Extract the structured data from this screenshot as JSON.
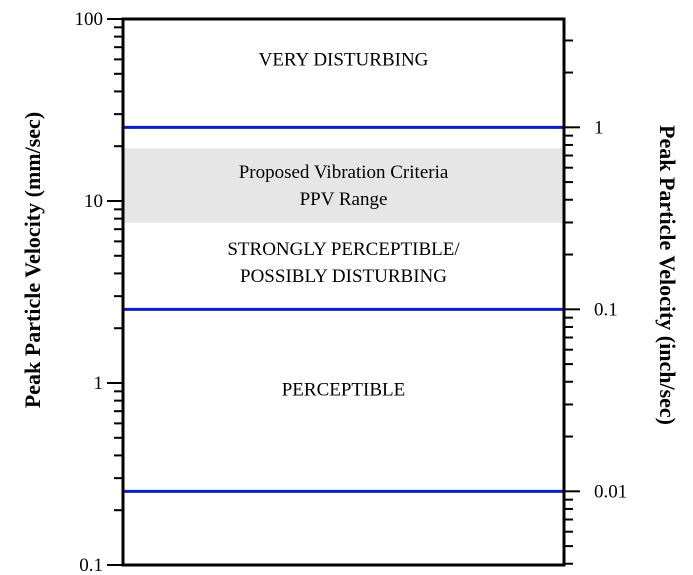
{
  "chart_data": {
    "type": "line",
    "title": "",
    "left_axis": {
      "label": "Peak Particle Velocity (mm/sec)",
      "scale": "log",
      "range": [
        0.1,
        100
      ],
      "tick_values": [
        0.1,
        1,
        10,
        100
      ],
      "tick_labels": [
        "0.1",
        "1",
        "10",
        "100"
      ]
    },
    "right_axis": {
      "label": "Peak Particle Velocity (inch/sec)",
      "scale": "log",
      "tick_values": [
        0.01,
        0.1,
        1
      ],
      "tick_labels": [
        "0.01",
        "0.1",
        "1"
      ]
    },
    "threshold_lines": [
      {
        "value_mm_sec": 0.254,
        "value_in_sec": 0.01,
        "color": "#0b1ec4"
      },
      {
        "value_mm_sec": 2.54,
        "value_in_sec": 0.1,
        "color": "#0b1ec4"
      },
      {
        "value_mm_sec": 25.4,
        "value_in_sec": 1,
        "color": "#0b1ec4"
      }
    ],
    "shaded_band": {
      "from_mm_sec": 7.6,
      "to_mm_sec": 19.5,
      "color": "#e6e6e6",
      "label_lines": [
        "Proposed Vibration Criteria",
        "PPV Range"
      ]
    },
    "zones": [
      {
        "name": "VERY DISTURBING",
        "lines": [
          "VERY DISTURBING"
        ],
        "center_mm_sec": 60
      },
      {
        "name": "STRONGLY PERCEPTIBLE/POSSIBLY DISTURBING",
        "lines": [
          "STRONGLY PERCEPTIBLE/",
          "POSSIBLY DISTURBING"
        ],
        "center_mm_sec": 4.6
      },
      {
        "name": "PERCEPTIBLE",
        "lines": [
          "PERCEPTIBLE"
        ],
        "center_mm_sec": 0.92
      }
    ],
    "grid": false,
    "legend": "none"
  }
}
